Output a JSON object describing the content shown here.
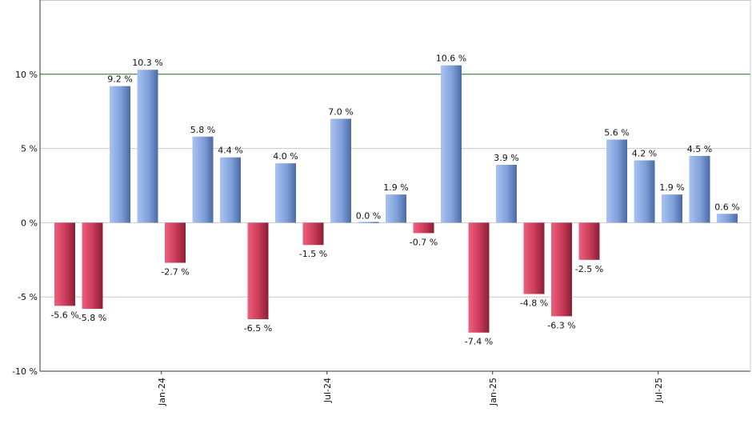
{
  "chart_data": {
    "type": "bar",
    "title": "",
    "xlabel": "",
    "ylabel": "",
    "ylim": [
      -10,
      15
    ],
    "y_ticks": [
      {
        "value": -10,
        "label": "-10 %"
      },
      {
        "value": -5,
        "label": "-5 %"
      },
      {
        "value": 0,
        "label": "0 %"
      },
      {
        "value": 5,
        "label": "5 %"
      },
      {
        "value": 10,
        "label": "10 %"
      }
    ],
    "x_tick_labels": [
      {
        "after_bar": 4,
        "label": "Jan-24"
      },
      {
        "after_bar": 10,
        "label": "Jul-24"
      },
      {
        "after_bar": 16,
        "label": "Jan-25"
      },
      {
        "after_bar": 22,
        "label": "Jul-25"
      }
    ],
    "reference_line": 10,
    "values": [
      -5.6,
      -5.8,
      9.2,
      10.3,
      -2.7,
      5.8,
      4.4,
      -6.5,
      4.0,
      -1.5,
      7.0,
      0.0,
      1.9,
      -0.7,
      10.6,
      -7.4,
      3.9,
      -4.8,
      -6.3,
      -2.5,
      5.6,
      4.2,
      1.9,
      4.5,
      0.6
    ],
    "labels": [
      "-5.6 %",
      "-5.8 %",
      "9.2 %",
      "10.3 %",
      "-2.7 %",
      "5.8 %",
      "4.4 %",
      "-6.5 %",
      "4.0 %",
      "-1.5 %",
      "7.0 %",
      "0.0 %",
      "1.9 %",
      "-0.7 %",
      "10.6 %",
      "-7.4 %",
      "3.9 %",
      "-4.8 %",
      "-6.3 %",
      "-2.5 %",
      "5.6 %",
      "4.2 %",
      "1.9 %",
      "4.5 %",
      "0.6 %"
    ],
    "grid": true,
    "colors": {
      "positive": "#7f9fd8",
      "negative": "#c83a58",
      "reference_line": "#2e7d32",
      "grid": "#c8c8c8",
      "axis": "#333333"
    }
  }
}
